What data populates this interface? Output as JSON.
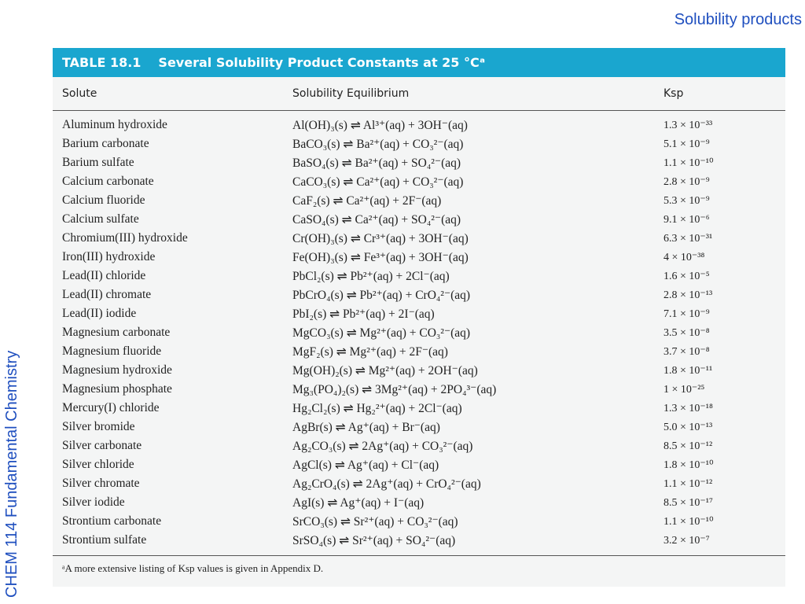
{
  "slide": {
    "header": "Solubility products",
    "side_label": "CHEM 114 Fundamental Chemistry"
  },
  "table": {
    "number_label": "TABLE 18.1",
    "title": "Several Solubility Product Constants at 25 °Cᵃ",
    "columns": [
      "Solute",
      "Solubility Equilibrium",
      "Ksp"
    ],
    "rows": [
      {
        "solute": "Aluminum hydroxide",
        "equilibrium": "Al(OH)₃(s) ⇌ Al³⁺(aq) + 3OH⁻(aq)",
        "ksp": "1.3 × 10⁻³³"
      },
      {
        "solute": "Barium carbonate",
        "equilibrium": "BaCO₃(s) ⇌ Ba²⁺(aq) + CO₃²⁻(aq)",
        "ksp": "5.1 × 10⁻⁹"
      },
      {
        "solute": "Barium sulfate",
        "equilibrium": "BaSO₄(s) ⇌ Ba²⁺(aq) + SO₄²⁻(aq)",
        "ksp": "1.1 × 10⁻¹⁰"
      },
      {
        "solute": "Calcium carbonate",
        "equilibrium": "CaCO₃(s) ⇌ Ca²⁺(aq) + CO₃²⁻(aq)",
        "ksp": "2.8 × 10⁻⁹"
      },
      {
        "solute": "Calcium fluoride",
        "equilibrium": "CaF₂(s) ⇌ Ca²⁺(aq) + 2F⁻(aq)",
        "ksp": "5.3 × 10⁻⁹"
      },
      {
        "solute": "Calcium sulfate",
        "equilibrium": "CaSO₄(s) ⇌ Ca²⁺(aq) + SO₄²⁻(aq)",
        "ksp": "9.1 × 10⁻⁶"
      },
      {
        "solute": "Chromium(III) hydroxide",
        "equilibrium": "Cr(OH)₃(s) ⇌ Cr³⁺(aq) + 3OH⁻(aq)",
        "ksp": "6.3 × 10⁻³¹"
      },
      {
        "solute": "Iron(III) hydroxide",
        "equilibrium": "Fe(OH)₃(s) ⇌ Fe³⁺(aq) + 3OH⁻(aq)",
        "ksp": "4 × 10⁻³⁸"
      },
      {
        "solute": "Lead(II) chloride",
        "equilibrium": "PbCl₂(s) ⇌ Pb²⁺(aq) + 2Cl⁻(aq)",
        "ksp": "1.6 × 10⁻⁵"
      },
      {
        "solute": "Lead(II) chromate",
        "equilibrium": "PbCrO₄(s) ⇌ Pb²⁺(aq) + CrO₄²⁻(aq)",
        "ksp": "2.8 × 10⁻¹³"
      },
      {
        "solute": "Lead(II) iodide",
        "equilibrium": "PbI₂(s) ⇌ Pb²⁺(aq) + 2I⁻(aq)",
        "ksp": "7.1 × 10⁻⁹"
      },
      {
        "solute": "Magnesium carbonate",
        "equilibrium": "MgCO₃(s) ⇌ Mg²⁺(aq) + CO₃²⁻(aq)",
        "ksp": "3.5 × 10⁻⁸"
      },
      {
        "solute": "Magnesium fluoride",
        "equilibrium": "MgF₂(s) ⇌ Mg²⁺(aq) + 2F⁻(aq)",
        "ksp": "3.7 × 10⁻⁸"
      },
      {
        "solute": "Magnesium hydroxide",
        "equilibrium": "Mg(OH)₂(s) ⇌ Mg²⁺(aq) + 2OH⁻(aq)",
        "ksp": "1.8 × 10⁻¹¹"
      },
      {
        "solute": "Magnesium phosphate",
        "equilibrium": "Mg₃(PO₄)₂(s) ⇌ 3Mg²⁺(aq) + 2PO₄³⁻(aq)",
        "ksp": "1 × 10⁻²⁵"
      },
      {
        "solute": "Mercury(I) chloride",
        "equilibrium": "Hg₂Cl₂(s) ⇌ Hg₂²⁺(aq) + 2Cl⁻(aq)",
        "ksp": "1.3 × 10⁻¹⁸"
      },
      {
        "solute": "Silver bromide",
        "equilibrium": "AgBr(s) ⇌ Ag⁺(aq) + Br⁻(aq)",
        "ksp": "5.0 × 10⁻¹³"
      },
      {
        "solute": "Silver carbonate",
        "equilibrium": "Ag₂CO₃(s) ⇌ 2Ag⁺(aq) + CO₃²⁻(aq)",
        "ksp": "8.5 × 10⁻¹²"
      },
      {
        "solute": "Silver chloride",
        "equilibrium": "AgCl(s) ⇌ Ag⁺(aq) + Cl⁻(aq)",
        "ksp": "1.8 × 10⁻¹⁰"
      },
      {
        "solute": "Silver chromate",
        "equilibrium": "Ag₂CrO₄(s) ⇌ 2Ag⁺(aq) + CrO₄²⁻(aq)",
        "ksp": "1.1 × 10⁻¹²"
      },
      {
        "solute": "Silver iodide",
        "equilibrium": "AgI(s) ⇌ Ag⁺(aq) + I⁻(aq)",
        "ksp": "8.5 × 10⁻¹⁷"
      },
      {
        "solute": "Strontium carbonate",
        "equilibrium": "SrCO₃(s) ⇌ Sr²⁺(aq) + CO₃²⁻(aq)",
        "ksp": "1.1 × 10⁻¹⁰"
      },
      {
        "solute": "Strontium sulfate",
        "equilibrium": "SrSO₄(s) ⇌ Sr²⁺(aq) + SO₄²⁻(aq)",
        "ksp": "3.2 × 10⁻⁷"
      }
    ],
    "footnote": "ᵃA more extensive listing of Ksp values is given in Appendix D."
  }
}
